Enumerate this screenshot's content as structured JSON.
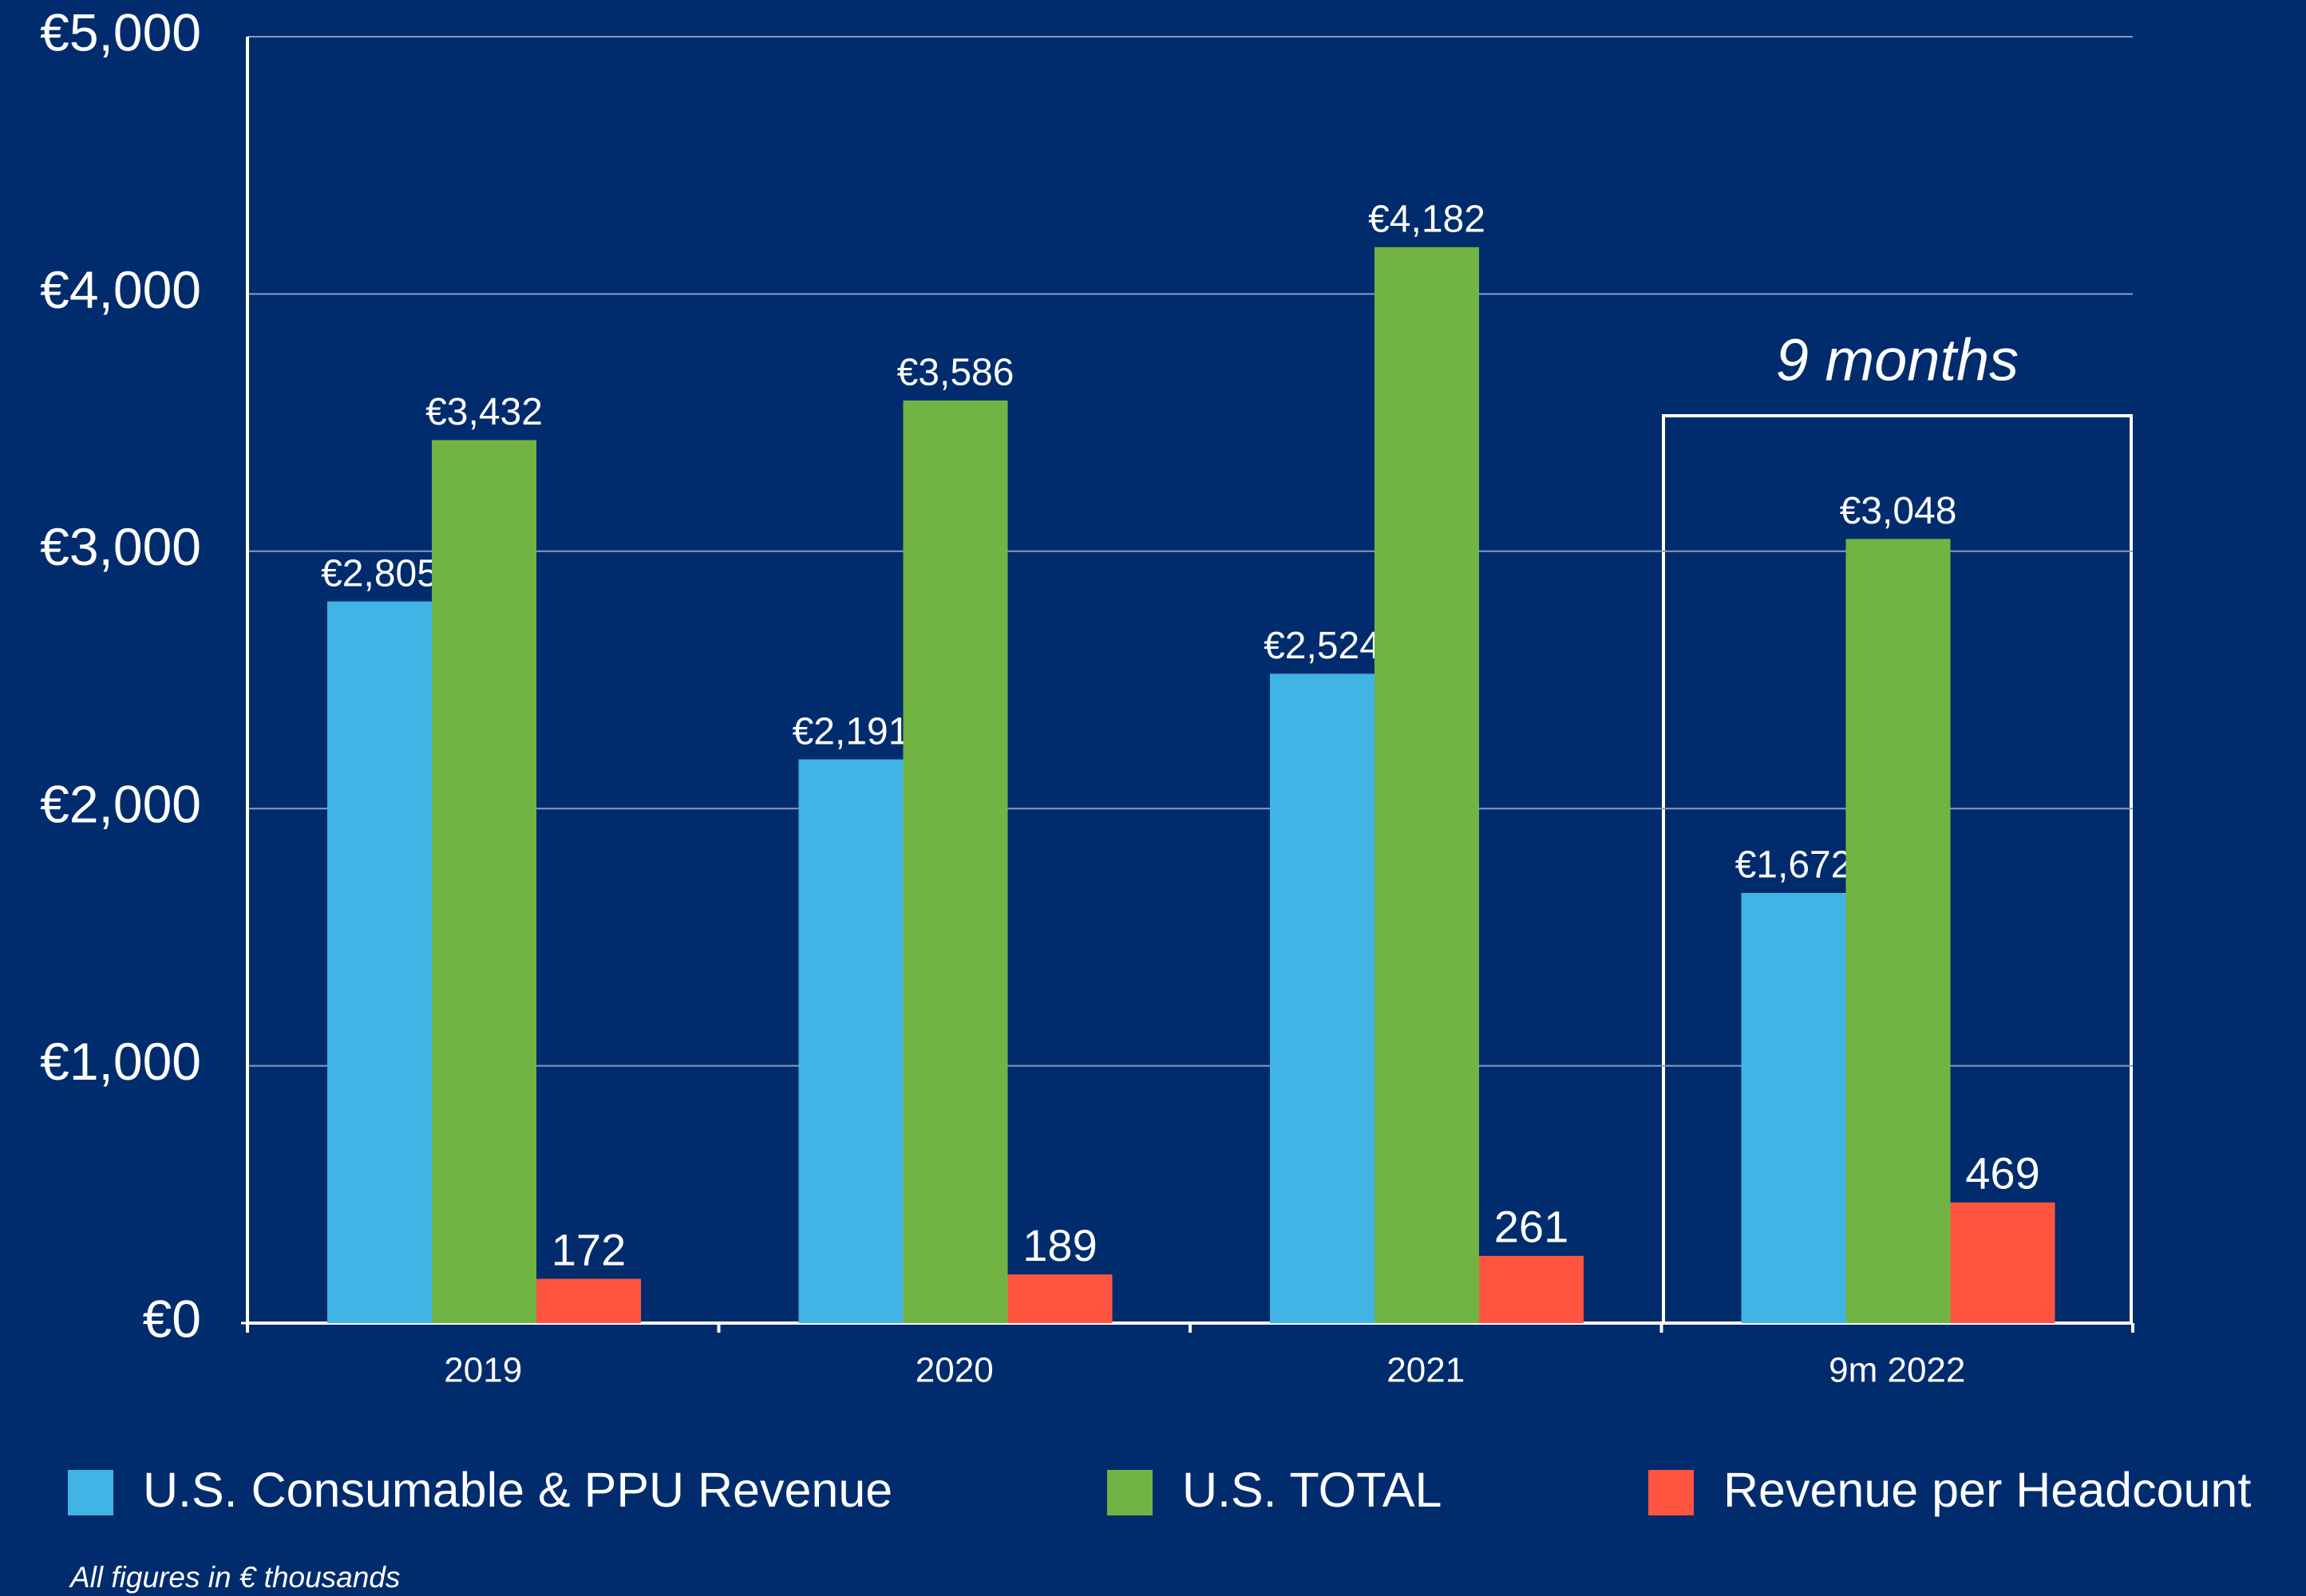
{
  "chart_data": {
    "type": "bar",
    "categories": [
      "2019",
      "2020",
      "2021",
      "9m 2022"
    ],
    "series": [
      {
        "name": "U.S. Consumable & PPU Revenue",
        "color": "#41b4e6",
        "values": [
          2805,
          2191,
          2524,
          1672
        ],
        "value_labels": [
          "€2,805",
          "€2,191",
          "€2,524",
          "€1,672"
        ]
      },
      {
        "name": "U.S. TOTAL",
        "color": "#72b443",
        "values": [
          3432,
          3586,
          4182,
          3048
        ],
        "value_labels": [
          "€3,432",
          "€3,586",
          "€4,182",
          "€3,048"
        ]
      },
      {
        "name": "Revenue per Headcount",
        "color": "#ff5540",
        "values": [
          172,
          189,
          261,
          469
        ]
      }
    ],
    "ylim": [
      0,
      5000
    ],
    "yticks": [
      {
        "value": 0,
        "label": "€0"
      },
      {
        "value": 1000,
        "label": "€1,000"
      },
      {
        "value": 2000,
        "label": "€2,000"
      },
      {
        "value": 3000,
        "label": "€3,000"
      },
      {
        "value": 4000,
        "label": "€4,000"
      },
      {
        "value": 5000,
        "label": "€5,000"
      }
    ],
    "grid": true,
    "annotation": "9 months",
    "note": "All figures in € thousands",
    "legend": "bottom"
  }
}
